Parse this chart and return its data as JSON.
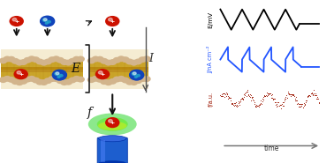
{
  "bg_color": "#ffffff",
  "plots": {
    "E_label": "E/mV",
    "I_label": "J/nA cm⁻²",
    "f_label": "f/a.u.",
    "time_label": "time",
    "E_color": "#000000",
    "I_color": "#2255ff",
    "f_color": "#9b1500",
    "axis_color": "#777777",
    "arrow_color": "#777777"
  },
  "membrane": {
    "head_color": "#d2b48c",
    "tail_color": "#c8a020",
    "tail_dark": "#b8860b",
    "ion_red": "#cc1100",
    "ion_blue": "#1144bb",
    "ion_teal_hi": "#44aadd",
    "arrow_color": "#111111",
    "bracket_color": "#222222",
    "glow_outer": "#00dd00",
    "glow_inner": "#aaff00",
    "glow_yellow": "#ffdd00",
    "det_blue": "#1155cc",
    "det_blue2": "#3366dd",
    "det_dark": "#0033aa"
  }
}
